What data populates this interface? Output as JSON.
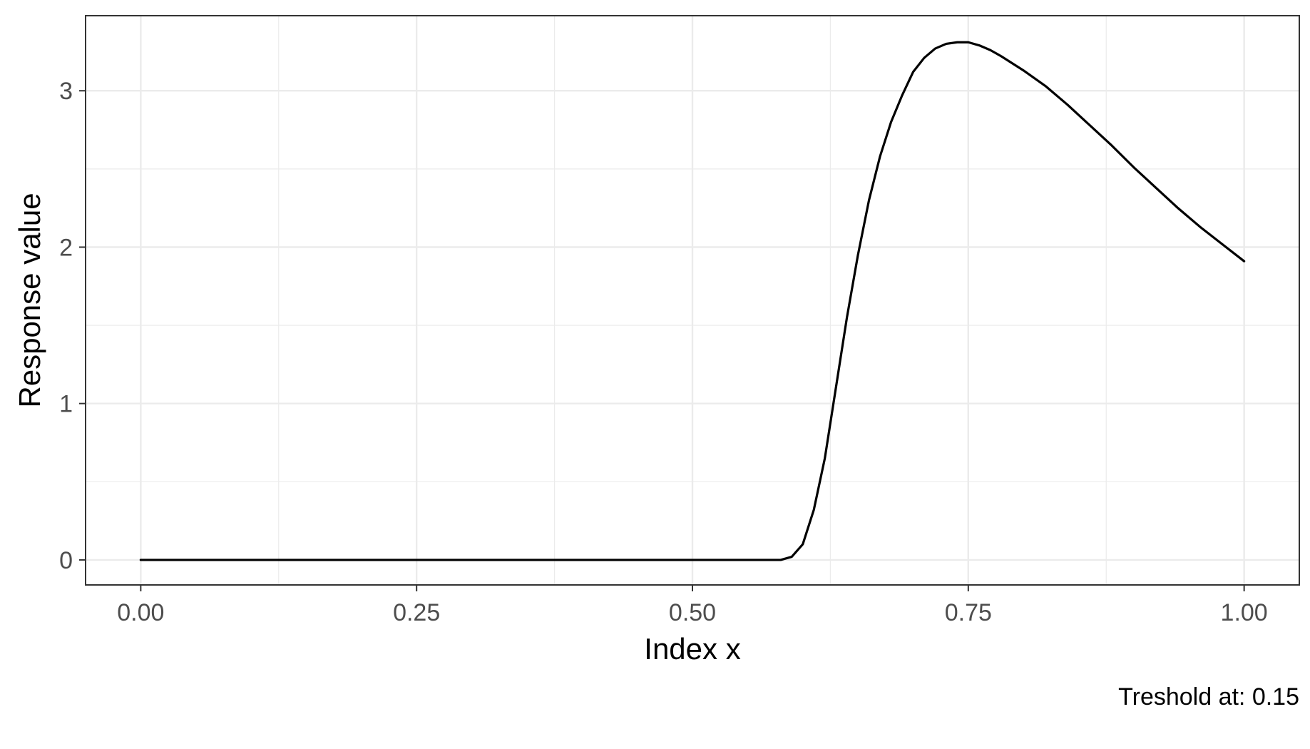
{
  "chart_data": {
    "type": "line",
    "title": "",
    "xlabel": "Index x",
    "ylabel": "Response value",
    "caption": "Treshold at: 0.15",
    "xlim": [
      -0.05,
      1.05
    ],
    "ylim": [
      -0.16,
      3.48
    ],
    "x_ticks": [
      0.0,
      0.25,
      0.5,
      0.75,
      1.0
    ],
    "x_tick_labels": [
      "0.00",
      "0.25",
      "0.50",
      "0.75",
      "1.00"
    ],
    "y_ticks": [
      0,
      1,
      2,
      3
    ],
    "y_tick_labels": [
      "0",
      "1",
      "2",
      "3"
    ],
    "grid": true,
    "legend": "none",
    "colors": {
      "line": "#000000",
      "grid": "#ebebeb",
      "border": "#333333",
      "tick_label": "#4d4d4d"
    },
    "series": [
      {
        "x": [
          0.0,
          0.1,
          0.2,
          0.3,
          0.4,
          0.5,
          0.58,
          0.59,
          0.6,
          0.61,
          0.62,
          0.63,
          0.64,
          0.65,
          0.66,
          0.67,
          0.68,
          0.69,
          0.7,
          0.71,
          0.72,
          0.73,
          0.74,
          0.75,
          0.76,
          0.77,
          0.78,
          0.8,
          0.82,
          0.84,
          0.86,
          0.88,
          0.9,
          0.92,
          0.94,
          0.96,
          0.98,
          1.0
        ],
        "values": [
          0,
          0,
          0,
          0,
          0,
          0,
          0,
          0.02,
          0.1,
          0.32,
          0.65,
          1.1,
          1.55,
          1.95,
          2.3,
          2.58,
          2.8,
          2.97,
          3.12,
          3.21,
          3.27,
          3.3,
          3.31,
          3.31,
          3.29,
          3.26,
          3.22,
          3.13,
          3.03,
          2.91,
          2.78,
          2.65,
          2.51,
          2.38,
          2.25,
          2.13,
          2.02,
          1.91
        ]
      }
    ]
  }
}
